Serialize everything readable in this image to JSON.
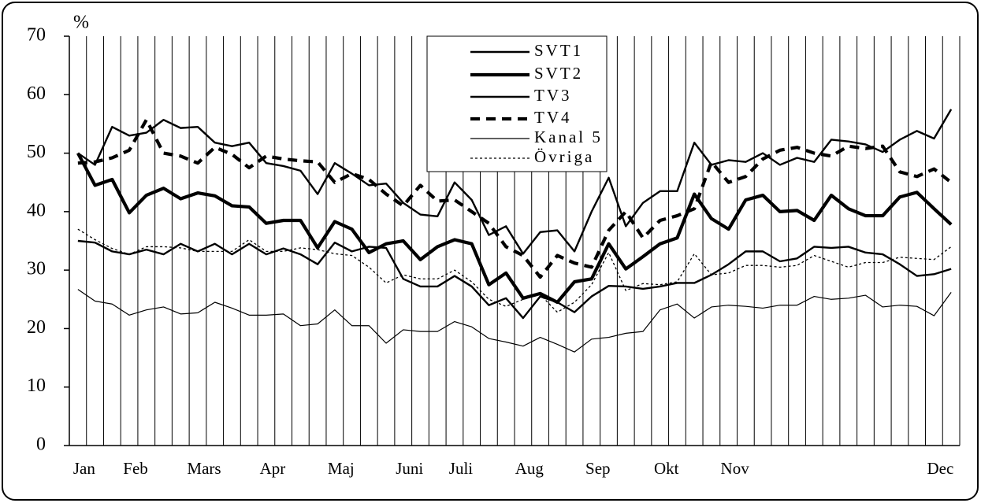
{
  "chart_data": {
    "type": "line",
    "y_label": "%",
    "categories": [
      "Jan",
      null,
      null,
      "Feb",
      null,
      null,
      null,
      "Mars",
      null,
      null,
      null,
      "Apr",
      null,
      null,
      null,
      "Maj",
      null,
      null,
      null,
      "Juni",
      null,
      null,
      "Juli",
      null,
      null,
      null,
      "Aug",
      null,
      null,
      null,
      "Sep",
      null,
      null,
      null,
      "Okt",
      null,
      null,
      null,
      "Nov",
      null,
      null,
      null,
      null,
      null,
      null,
      null,
      null,
      null,
      null,
      null,
      "Dec",
      null
    ],
    "ylim": [
      0,
      70
    ],
    "yticks": [
      0,
      10,
      20,
      30,
      40,
      50,
      60,
      70
    ],
    "grid": "x",
    "legend": "top",
    "series": [
      {
        "name": "SVT1",
        "color": "#000000",
        "style": "medium",
        "values": [
          50,
          48,
          54.5,
          53,
          53.5,
          55.7,
          54.3,
          54.5,
          51.8,
          51.2,
          51.8,
          48.3,
          47.8,
          47,
          43,
          48.3,
          46.5,
          44.5,
          44.8,
          41.5,
          39.5,
          39.2,
          45,
          42,
          36,
          37.5,
          32.8,
          36.5,
          36.8,
          33.2,
          40,
          45.8,
          37.5,
          41.5,
          43.5,
          43.5,
          51.8,
          48,
          48.8,
          48.5,
          50,
          48,
          49.2,
          48.5,
          52.3,
          52,
          51.5,
          50.2,
          52.3,
          53.8,
          52.5,
          57.5
        ]
      },
      {
        "name": "SVT2",
        "color": "#000000",
        "style": "thick",
        "values": [
          50,
          44.5,
          45.5,
          39.8,
          42.8,
          44,
          42.2,
          43.2,
          42.7,
          41,
          40.8,
          38,
          38.5,
          38.5,
          33.8,
          38.3,
          37,
          33,
          34.5,
          35,
          31.8,
          34,
          35.2,
          34.5,
          27.5,
          29.5,
          25.2,
          26,
          24.5,
          28,
          28.5,
          34.5,
          30.2,
          32.3,
          34.5,
          35.5,
          43,
          38.8,
          37,
          42,
          42.8,
          40,
          40.2,
          38.5,
          42.8,
          40.5,
          39.3,
          39.3,
          42.5,
          43.3,
          40.5,
          37.8
        ]
      },
      {
        "name": "TV3",
        "color": "#000000",
        "style": "medium",
        "values": [
          35,
          34.7,
          33.2,
          32.7,
          33.5,
          32.7,
          34.5,
          33.2,
          34.5,
          32.7,
          34.5,
          32.7,
          33.7,
          32.7,
          31,
          34.7,
          33.2,
          34,
          33.8,
          28.5,
          27.2,
          27.2,
          29,
          27.2,
          24,
          25.2,
          21.8,
          25.5,
          24.5,
          22.8,
          25.5,
          27.3,
          27.2,
          26.8,
          27.2,
          27.8,
          27.8,
          29.2,
          31,
          33.2,
          33.2,
          31.5,
          32,
          34,
          33.8,
          34,
          33,
          32.7,
          31,
          29,
          29.3,
          30.2
        ]
      },
      {
        "name": "TV4",
        "color": "#000000",
        "style": "dashed",
        "values": [
          48.3,
          48.5,
          49.2,
          50.5,
          55.7,
          50,
          49.5,
          48.3,
          51,
          49.8,
          47.5,
          49.5,
          49,
          48.7,
          48.5,
          45,
          46.5,
          45.5,
          43,
          41,
          44.5,
          41.8,
          42,
          40,
          38,
          34,
          32.5,
          28.8,
          32.5,
          31.2,
          30.5,
          36.8,
          40,
          35.5,
          38.5,
          39.3,
          40.5,
          48.5,
          45,
          46,
          49,
          50.5,
          51,
          50,
          49.5,
          51.2,
          50.8,
          51.2,
          46.8,
          46,
          47.3,
          45
        ]
      },
      {
        "name": "Kanal 5",
        "color": "#000000",
        "style": "thin",
        "values": [
          26.7,
          24.7,
          24.2,
          22.3,
          23.2,
          23.7,
          22.5,
          22.7,
          24.5,
          23.5,
          22.3,
          22.3,
          22.5,
          20.5,
          20.8,
          23.2,
          20.5,
          20.5,
          17.5,
          19.8,
          19.5,
          19.5,
          21.2,
          20.3,
          18.3,
          17.7,
          17,
          18.5,
          17.3,
          16,
          18.2,
          18.5,
          19.2,
          19.5,
          23.2,
          24.2,
          21.8,
          23.7,
          24,
          23.8,
          23.5,
          24,
          24,
          25.5,
          25,
          25.2,
          25.7,
          23.7,
          24,
          23.8,
          22.2,
          26.2
        ]
      },
      {
        "name": "Övriga",
        "color": "#000000",
        "style": "dotted",
        "values": [
          37,
          35.2,
          33.7,
          32.7,
          34,
          34,
          33.8,
          33.2,
          33.2,
          33.2,
          35.2,
          33.2,
          33.2,
          33.8,
          33.5,
          32.8,
          32.5,
          30.5,
          27.8,
          29.2,
          28.5,
          28.5,
          30,
          28,
          25,
          23.8,
          25,
          25.8,
          22.8,
          24.5,
          27.5,
          33,
          26.5,
          27.7,
          27.5,
          28,
          32.8,
          29.2,
          29.5,
          30.8,
          30.8,
          30.5,
          30.8,
          32.5,
          31.5,
          30.5,
          31.3,
          31.3,
          32.2,
          32,
          31.8,
          34
        ]
      }
    ]
  }
}
